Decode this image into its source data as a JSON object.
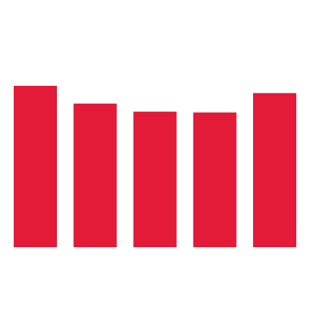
{
  "chart_data": {
    "type": "bar",
    "categories": [
      "",
      "",
      "",
      "",
      ""
    ],
    "values": [
      1.0,
      0.89,
      0.84,
      0.835,
      0.955
    ],
    "ylim": [
      0,
      1.0
    ],
    "grid": false,
    "legend": "none",
    "bar_color": "#e31a38"
  }
}
